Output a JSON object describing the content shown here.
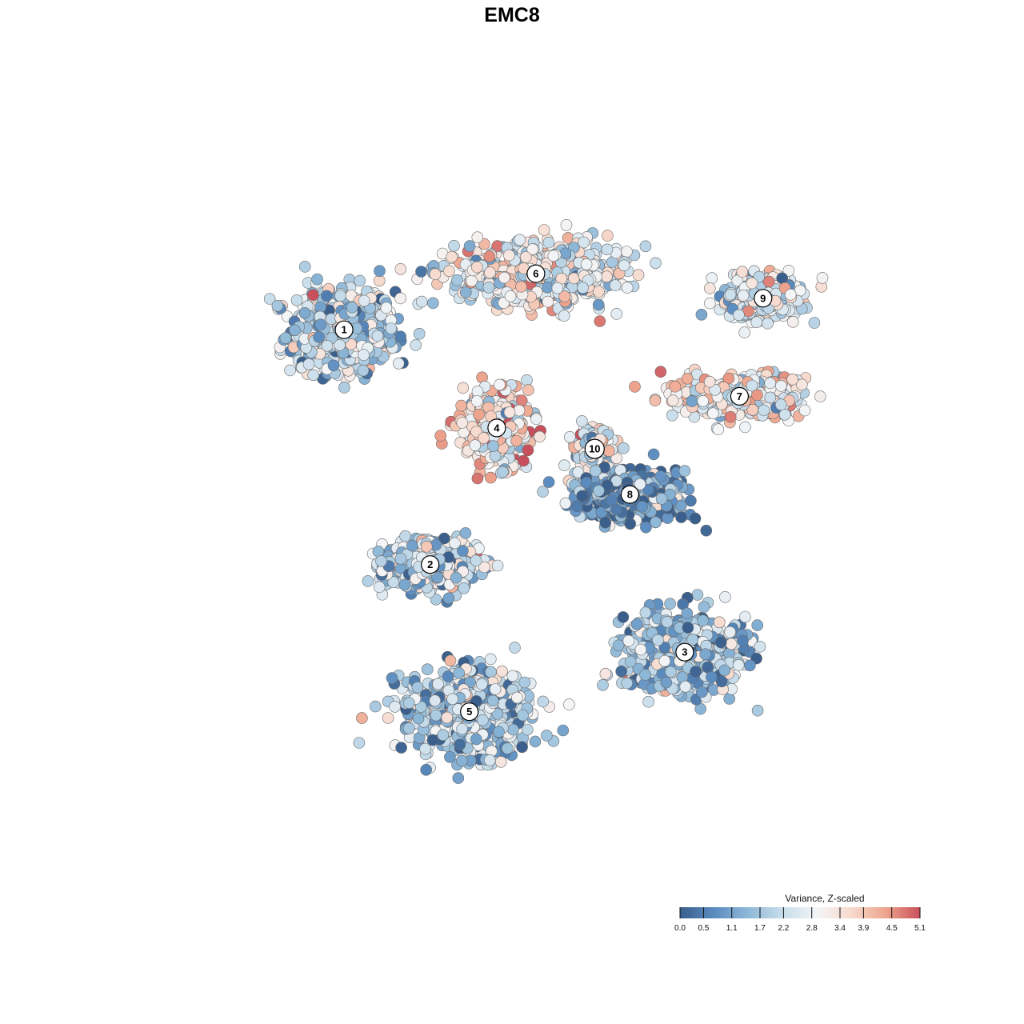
{
  "chart_data": {
    "type": "scatter",
    "title": "EMC8",
    "color_scale": {
      "title": "Variance, Z-scaled",
      "min": 0.0,
      "max": 5.1,
      "ticks": [
        "0.0",
        "0.5",
        "1.1",
        "1.7",
        "2.2",
        "2.8",
        "3.4",
        "3.9",
        "4.5",
        "5.1"
      ],
      "tick_values": [
        0.0,
        0.5,
        1.1,
        1.7,
        2.2,
        2.8,
        3.4,
        3.9,
        4.5,
        5.1
      ],
      "colors": [
        "#3a5f8c",
        "#5b8cc0",
        "#8fb9d8",
        "#c8ddeb",
        "#f3f5f7",
        "#f7d9cc",
        "#eea48c",
        "#c8505c"
      ]
    },
    "clusters": [
      {
        "id": "1",
        "x": -21.5,
        "y": 23.5,
        "mean_value": 2.0,
        "spread_x": 5.5,
        "spread_y": 5.0
      },
      {
        "id": "2",
        "x": -10.5,
        "y": -10.0,
        "mean_value": 2.1,
        "spread_x": 5.0,
        "spread_y": 3.0
      },
      {
        "id": "3",
        "x": 22.0,
        "y": -22.5,
        "mean_value": 1.6,
        "spread_x": 6.5,
        "spread_y": 4.5
      },
      {
        "id": "4",
        "x": -2.0,
        "y": 9.5,
        "mean_value": 3.3,
        "spread_x": 3.5,
        "spread_y": 4.0
      },
      {
        "id": "5",
        "x": -5.5,
        "y": -31.0,
        "mean_value": 1.8,
        "spread_x": 6.5,
        "spread_y": 5.0
      },
      {
        "id": "6",
        "x": 3.0,
        "y": 31.5,
        "mean_value": 2.8,
        "spread_x": 9.0,
        "spread_y": 3.5
      },
      {
        "id": "7",
        "x": 29.0,
        "y": 14.0,
        "mean_value": 3.0,
        "spread_x": 6.5,
        "spread_y": 2.5
      },
      {
        "id": "8",
        "x": 15.0,
        "y": 0.0,
        "mean_value": 0.9,
        "spread_x": 6.0,
        "spread_y": 3.0
      },
      {
        "id": "9",
        "x": 32.0,
        "y": 28.0,
        "mean_value": 2.7,
        "spread_x": 4.0,
        "spread_y": 2.5
      },
      {
        "id": "10",
        "x": 10.5,
        "y": 6.5,
        "mean_value": 2.6,
        "spread_x": 2.0,
        "spread_y": 2.5
      }
    ],
    "xlim": [
      -45,
      50
    ],
    "ylim": [
      -55,
      50
    ],
    "grid": false,
    "legend_position": "bottom-right"
  }
}
